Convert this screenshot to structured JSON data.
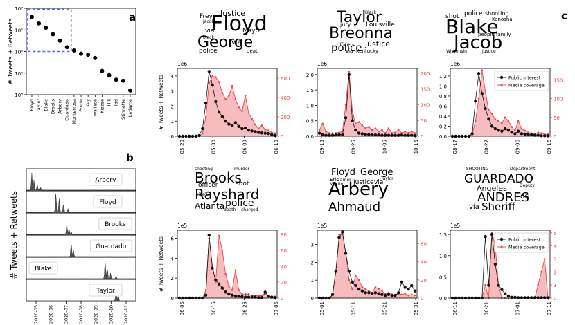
{
  "panel_letters": {
    "a": "a",
    "b": "b",
    "c": "c"
  },
  "legend": {
    "public": "Public interest",
    "media": "Media coverage"
  },
  "colors": {
    "public": "#111111",
    "media": "#e8474b",
    "media_fill": "#f4a6a8",
    "box": "#4a6cf7",
    "spark": "#555555"
  },
  "chart_data": [
    {
      "id": "a",
      "type": "scatter",
      "title": "",
      "ylabel": "# Tweets + Retweets",
      "yscale": "log",
      "ylim_exp": [
        3,
        7
      ],
      "yticks": [
        "10⁷",
        "10⁶",
        "10⁵",
        "10⁴",
        "10³"
      ],
      "categories": [
        "Floyd",
        "Taylor",
        "Blake",
        "Brooks",
        "Arbery",
        "Guardado",
        "Monterrosa",
        "Prude",
        "Key",
        "Wallace",
        "Kizzee",
        "Hill",
        "Idd",
        "Stinnette",
        "Letlame"
      ],
      "log_values": [
        6.6,
        6.3,
        6.1,
        5.8,
        5.5,
        5.2,
        5.05,
        4.9,
        4.85,
        4.7,
        4.1,
        3.9,
        3.7,
        3.65,
        3.2
      ],
      "highlight_box": "top six categories"
    },
    {
      "id": "b",
      "type": "area",
      "ylabel": "# Tweets + Retweets",
      "xticks": [
        "2020-05",
        "2020-06",
        "2020-07",
        "2020-08",
        "2020-09",
        "2020-10",
        "2020-11"
      ],
      "rows": [
        {
          "label": "Arbery",
          "peaks": [
            [
              0.05,
              0.9
            ],
            [
              0.07,
              0.55
            ],
            [
              0.1,
              0.3
            ],
            [
              0.13,
              0.15
            ]
          ]
        },
        {
          "label": "Floyd",
          "peaks": [
            [
              0.27,
              1.0
            ],
            [
              0.3,
              0.7
            ],
            [
              0.34,
              0.45
            ],
            [
              0.38,
              0.2
            ]
          ]
        },
        {
          "label": "Brooks",
          "peaks": [
            [
              0.37,
              0.55
            ],
            [
              0.39,
              0.3
            ],
            [
              0.41,
              0.15
            ]
          ]
        },
        {
          "label": "Guardado",
          "peaks": [
            [
              0.41,
              0.7
            ],
            [
              0.43,
              0.35
            ]
          ]
        },
        {
          "label": "Blake",
          "peaks": [
            [
              0.72,
              1.0
            ],
            [
              0.74,
              0.6
            ],
            [
              0.77,
              0.3
            ],
            [
              0.82,
              0.15
            ]
          ]
        },
        {
          "label": "Taylor",
          "peaks": [
            [
              0.82,
              0.75
            ],
            [
              0.84,
              0.3
            ]
          ]
        }
      ]
    },
    {
      "id": "c-floyd",
      "type": "line",
      "ylabel": "# Tweets + Retweets",
      "y_exponent": "1e6",
      "xticks": [
        "05-20",
        "05-30",
        "06-09",
        "06-19"
      ],
      "left_ticks": [
        "0",
        "1",
        "2",
        "3",
        "4"
      ],
      "left_max": 4.5,
      "right_ticks": [
        "0",
        "200",
        "400",
        "600"
      ],
      "right_max": 700,
      "public": [
        0.0,
        0.0,
        0.0,
        0.0,
        0.0,
        0.0,
        0.05,
        0.5,
        2.2,
        4.3,
        3.4,
        2.3,
        1.6,
        1.3,
        1.0,
        0.8,
        0.7,
        0.9,
        0.65,
        0.5,
        0.55,
        0.4,
        0.35,
        0.3,
        0.25,
        0.22,
        0.2,
        0.18,
        0.1,
        0.05
      ],
      "media": [
        0.0,
        0.0,
        0.0,
        0.0,
        0.0,
        0.0,
        0.0,
        30,
        200,
        550,
        620,
        610,
        560,
        450,
        380,
        420,
        520,
        380,
        300,
        260,
        420,
        240,
        180,
        120,
        80,
        110,
        70,
        60,
        40,
        30
      ],
      "show_legend": false
    },
    {
      "id": "c-taylor",
      "type": "line",
      "ylabel": "",
      "y_exponent": "1e6",
      "xticks": [
        "09-15",
        "09-25",
        "10-05",
        "10-15"
      ],
      "left_ticks": [
        "0.0",
        "0.5",
        "1.0",
        "1.5",
        "2.0"
      ],
      "left_max": 2.2,
      "right_ticks": [
        "0",
        "50",
        "100",
        "150",
        "200"
      ],
      "right_max": 215,
      "public": [
        0.1,
        0.06,
        0.03,
        0.03,
        0.03,
        0.04,
        0.05,
        0.05,
        0.6,
        2.0,
        0.5,
        0.2,
        0.1,
        0.08,
        0.06,
        0.05,
        0.05,
        0.04,
        0.04,
        0.03,
        0.03,
        0.03,
        0.03,
        0.03,
        0.03,
        0.04,
        0.03,
        0.03,
        0.03,
        0.02
      ],
      "media": [
        20,
        40,
        15,
        10,
        10,
        10,
        12,
        15,
        100,
        205,
        80,
        40,
        45,
        35,
        25,
        30,
        20,
        25,
        15,
        20,
        10,
        25,
        10,
        12,
        20,
        10,
        15,
        10,
        15,
        10
      ],
      "show_legend": false
    },
    {
      "id": "c-blake",
      "type": "line",
      "ylabel": "",
      "y_exponent": "1e6",
      "xticks": [
        "08-17",
        "08-27",
        "09-06",
        "09-16"
      ],
      "left_ticks": [
        "0.0",
        "0.2",
        "0.4",
        "0.6",
        "0.8",
        "1.0",
        "1.2"
      ],
      "left_max": 1.35,
      "right_ticks": [
        "0",
        "50",
        "100",
        "150"
      ],
      "right_max": 180,
      "public": [
        0.0,
        0.0,
        0.0,
        0.0,
        0.0,
        0.0,
        0.05,
        0.7,
        1.25,
        0.85,
        0.55,
        0.35,
        0.2,
        0.15,
        0.12,
        0.1,
        0.15,
        0.12,
        0.08,
        0.05,
        0.1,
        0.05,
        0.04,
        0.03,
        0.03,
        0.02,
        0.02,
        0.01,
        0.01,
        0.01
      ],
      "media": [
        0,
        0,
        0,
        0,
        0,
        0,
        5,
        40,
        100,
        175,
        120,
        70,
        60,
        45,
        40,
        35,
        50,
        40,
        25,
        15,
        40,
        20,
        15,
        10,
        8,
        5,
        10,
        8,
        5,
        5
      ],
      "show_legend": true
    },
    {
      "id": "c-brooks",
      "type": "line",
      "ylabel": "# Tweets + Retweets",
      "y_exponent": "1e5",
      "xticks": [
        "06-05",
        "06-15",
        "06-25",
        "07-05"
      ],
      "left_ticks": [
        "0",
        "2",
        "4",
        "6"
      ],
      "left_max": 6.8,
      "right_ticks": [
        "0",
        "20",
        "40",
        "60",
        "80"
      ],
      "right_max": 85,
      "public": [
        0.0,
        0.0,
        0.0,
        0.0,
        0.0,
        0.0,
        0.0,
        0.0,
        0.3,
        6.3,
        3.0,
        1.8,
        1.4,
        1.0,
        0.6,
        0.4,
        0.3,
        0.2,
        0.2,
        0.15,
        0.1,
        0.1,
        0.1,
        0.1,
        0.05,
        0.05,
        0.6,
        0.2,
        0.1,
        0.05
      ],
      "media": [
        0,
        0,
        0,
        0,
        0,
        0,
        0,
        0,
        10,
        75,
        40,
        20,
        78,
        60,
        30,
        15,
        10,
        35,
        10,
        5,
        5,
        5,
        3,
        3,
        3,
        3,
        5,
        3,
        2,
        2
      ],
      "show_legend": false
    },
    {
      "id": "c-arbery",
      "type": "line",
      "ylabel": "",
      "y_exponent": "1e5",
      "xticks": [
        "05-01",
        "05-11",
        "05-21",
        "05-31"
      ],
      "left_ticks": [
        "0",
        "1",
        "2",
        "3"
      ],
      "left_max": 3.8,
      "right_ticks": [
        "0",
        "20",
        "40",
        "60"
      ],
      "right_max": 75,
      "public": [
        0.0,
        0.0,
        0.0,
        0.0,
        0.2,
        1.5,
        3.4,
        3.7,
        2.5,
        1.5,
        0.9,
        0.7,
        0.5,
        0.4,
        0.3,
        0.3,
        0.25,
        0.3,
        0.25,
        0.2,
        0.15,
        0.2,
        0.15,
        0.15,
        0.3,
        0.9,
        0.6,
        0.5,
        0.7,
        0.4
      ],
      "media": [
        0,
        0,
        0,
        0,
        3,
        30,
        70,
        72,
        50,
        20,
        10,
        25,
        20,
        12,
        10,
        8,
        6,
        12,
        10,
        8,
        5,
        6,
        4,
        3,
        5,
        4,
        5,
        3,
        4,
        3
      ],
      "show_legend": false
    },
    {
      "id": "c-guardado",
      "type": "line",
      "ylabel": "",
      "y_exponent": "1e5",
      "xticks": [
        "06-11",
        "06-21",
        "07-01",
        "07-11"
      ],
      "left_ticks": [
        "0.0",
        "0.5",
        "1.0",
        "1.5"
      ],
      "left_max": 1.6,
      "right_ticks": [
        "0",
        "1",
        "2",
        "3",
        "4",
        "5"
      ],
      "right_max": 5.2,
      "public": [
        0.0,
        0.0,
        0.0,
        0.0,
        0.0,
        0.0,
        0.0,
        0.0,
        0.0,
        0.0,
        1.45,
        0.3,
        1.5,
        0.8,
        0.3,
        0.2,
        0.1,
        0.05,
        0.02,
        0.02,
        0.01,
        0.01,
        0.01,
        0.01,
        0.01,
        0.01,
        0.01,
        0.01,
        0.01,
        0.01
      ],
      "media": [
        0,
        0,
        0,
        0,
        0,
        0,
        0,
        0,
        0,
        0,
        1,
        0,
        5,
        4,
        1,
        0,
        0,
        0,
        0,
        0,
        0,
        0,
        0,
        0,
        0,
        0,
        1,
        2,
        3,
        0
      ],
      "show_legend": true
    }
  ],
  "wordclouds": {
    "floyd": [
      "Floyd",
      "George",
      "Justice",
      "police",
      "via",
      "Mayor",
      "Frey",
      "Jacob",
      "change",
      "black",
      "death",
      "rip"
    ],
    "taylor": [
      "Taylor",
      "Breonna",
      "police",
      "justice",
      "Louisville",
      "jury",
      "grand",
      "Black",
      "officers",
      "via",
      "Kentucky",
      "shot"
    ],
    "blake": [
      "Blake",
      "Jacob",
      "police",
      "shot",
      "shooting",
      "Kenosha",
      "people",
      "via",
      "Wisconsin",
      "family",
      "cops",
      "Justice"
    ],
    "brooks": [
      "Brooks",
      "Rayshard",
      "police",
      "Atlanta",
      "officer",
      "shooting",
      "murder",
      "shot",
      "charged",
      "death",
      "killed",
      "via"
    ],
    "arbery": [
      "Arbery",
      "Ahmaud",
      "Floyd",
      "George",
      "Justice",
      "via",
      "Eric",
      "Garner",
      "Martin",
      "Taylor",
      "Breonna",
      "case"
    ],
    "guardado": [
      "GUARDADO",
      "ANDRES",
      "Sheriff",
      "Angeles",
      "Los",
      "SHOOTING",
      "Department",
      "via",
      "Deputy"
    ]
  }
}
